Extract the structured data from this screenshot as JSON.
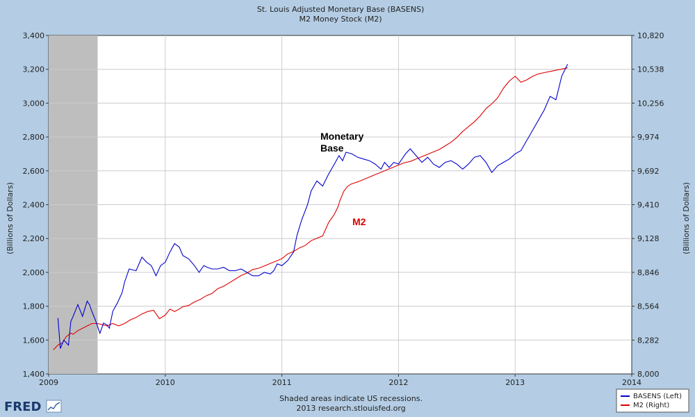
{
  "chart_data": {
    "type": "line",
    "title": "St. Louis Adjusted Monetary Base (BASENS)",
    "subtitle": "M2 Money Stock (M2)",
    "ylabel_left": "(Billions of Dollars)",
    "ylabel_right": "(Billions of Dollars)",
    "x_ticks": [
      "2009",
      "2010",
      "2011",
      "2012",
      "2013",
      "2014"
    ],
    "xlim": [
      2009,
      2014
    ],
    "ylim_left": [
      1400,
      3400
    ],
    "y_ticks_left": [
      "1,400",
      "1,600",
      "1,800",
      "2,000",
      "2,200",
      "2,400",
      "2,600",
      "2,800",
      "3,000",
      "3,200",
      "3,400"
    ],
    "ylim_right": [
      8000,
      10820
    ],
    "y_ticks_right": [
      "8,000",
      "8,282",
      "8,564",
      "8,846",
      "9,128",
      "9,410",
      "9,692",
      "9,974",
      "10,256",
      "10,538",
      "10,820"
    ],
    "recession": {
      "start": 2009.0,
      "end": 2009.42
    },
    "series": [
      {
        "name": "BASENS (Left)",
        "color": "#0000cc",
        "axis": "left",
        "x": [
          2009.08,
          2009.1,
          2009.13,
          2009.17,
          2009.19,
          2009.21,
          2009.25,
          2009.29,
          2009.33,
          2009.35,
          2009.37,
          2009.4,
          2009.44,
          2009.47,
          2009.5,
          2009.52,
          2009.55,
          2009.59,
          2009.63,
          2009.65,
          2009.69,
          2009.75,
          2009.8,
          2009.84,
          2009.88,
          2009.92,
          2009.96,
          2010.0,
          2010.04,
          2010.08,
          2010.12,
          2010.15,
          2010.2,
          2010.25,
          2010.29,
          2010.33,
          2010.36,
          2010.4,
          2010.45,
          2010.5,
          2010.55,
          2010.6,
          2010.65,
          2010.7,
          2010.75,
          2010.8,
          2010.85,
          2010.9,
          2010.93,
          2010.96,
          2011.0,
          2011.05,
          2011.1,
          2011.13,
          2011.17,
          2011.22,
          2011.25,
          2011.3,
          2011.35,
          2011.4,
          2011.45,
          2011.49,
          2011.52,
          2011.55,
          2011.6,
          2011.65,
          2011.7,
          2011.75,
          2011.8,
          2011.85,
          2011.88,
          2011.92,
          2011.96,
          2012.0,
          2012.03,
          2012.06,
          2012.1,
          2012.15,
          2012.2,
          2012.25,
          2012.3,
          2012.35,
          2012.4,
          2012.45,
          2012.5,
          2012.55,
          2012.6,
          2012.65,
          2012.7,
          2012.75,
          2012.8,
          2012.85,
          2012.9,
          2012.95,
          2013.0,
          2013.05,
          2013.1,
          2013.15,
          2013.2,
          2013.25,
          2013.3,
          2013.35,
          2013.4,
          2013.45
        ],
        "values": [
          1730,
          1550,
          1600,
          1570,
          1710,
          1740,
          1810,
          1740,
          1830,
          1810,
          1770,
          1720,
          1640,
          1700,
          1690,
          1670,
          1770,
          1820,
          1880,
          1940,
          2020,
          2010,
          2090,
          2060,
          2040,
          1980,
          2040,
          2060,
          2120,
          2170,
          2150,
          2100,
          2080,
          2040,
          2000,
          2040,
          2030,
          2020,
          2020,
          2030,
          2010,
          2010,
          2020,
          2000,
          1980,
          1980,
          2000,
          1990,
          2010,
          2050,
          2040,
          2070,
          2120,
          2220,
          2310,
          2400,
          2480,
          2540,
          2510,
          2580,
          2640,
          2690,
          2660,
          2710,
          2700,
          2680,
          2670,
          2660,
          2640,
          2610,
          2650,
          2620,
          2650,
          2640,
          2670,
          2700,
          2730,
          2690,
          2650,
          2680,
          2640,
          2620,
          2650,
          2660,
          2640,
          2610,
          2640,
          2680,
          2690,
          2650,
          2590,
          2630,
          2650,
          2670,
          2700,
          2720,
          2780,
          2840,
          2900,
          2960,
          3040,
          3020,
          3160,
          3230
        ]
      },
      {
        "name": "M2 (Right)",
        "color": "#dd0000",
        "axis": "right",
        "x": [
          2009.04,
          2009.08,
          2009.12,
          2009.15,
          2009.19,
          2009.21,
          2009.25,
          2009.29,
          2009.33,
          2009.37,
          2009.42,
          2009.46,
          2009.5,
          2009.55,
          2009.6,
          2009.65,
          2009.7,
          2009.75,
          2009.8,
          2009.85,
          2009.9,
          2009.95,
          2010.0,
          2010.04,
          2010.08,
          2010.12,
          2010.15,
          2010.2,
          2010.25,
          2010.3,
          2010.35,
          2010.4,
          2010.45,
          2010.5,
          2010.55,
          2010.6,
          2010.65,
          2010.7,
          2010.75,
          2010.8,
          2010.85,
          2010.9,
          2010.95,
          2011.0,
          2011.05,
          2011.1,
          2011.15,
          2011.2,
          2011.25,
          2011.3,
          2011.35,
          2011.4,
          2011.45,
          2011.48,
          2011.5,
          2011.53,
          2011.56,
          2011.59,
          2011.62,
          2011.65,
          2011.7,
          2011.75,
          2011.8,
          2011.85,
          2011.9,
          2011.95,
          2012.0,
          2012.05,
          2012.1,
          2012.15,
          2012.2,
          2012.25,
          2012.3,
          2012.35,
          2012.4,
          2012.45,
          2012.5,
          2012.55,
          2012.6,
          2012.65,
          2012.7,
          2012.75,
          2012.8,
          2012.85,
          2012.9,
          2012.95,
          2013.0,
          2013.05,
          2013.1,
          2013.15,
          2013.2,
          2013.25,
          2013.3,
          2013.35,
          2013.4,
          2013.45
        ],
        "values": [
          8200,
          8240,
          8260,
          8310,
          8340,
          8330,
          8360,
          8380,
          8400,
          8420,
          8420,
          8410,
          8400,
          8420,
          8400,
          8420,
          8450,
          8470,
          8500,
          8520,
          8530,
          8460,
          8490,
          8540,
          8520,
          8540,
          8560,
          8570,
          8600,
          8620,
          8650,
          8670,
          8710,
          8730,
          8760,
          8790,
          8820,
          8840,
          8870,
          8880,
          8900,
          8920,
          8940,
          8960,
          9000,
          9020,
          9050,
          9070,
          9110,
          9130,
          9150,
          9260,
          9330,
          9390,
          9450,
          9520,
          9560,
          9580,
          9590,
          9600,
          9620,
          9640,
          9660,
          9680,
          9700,
          9720,
          9740,
          9760,
          9770,
          9790,
          9810,
          9830,
          9850,
          9870,
          9900,
          9930,
          9970,
          10020,
          10060,
          10100,
          10150,
          10210,
          10250,
          10300,
          10380,
          10440,
          10480,
          10430,
          10450,
          10480,
          10500,
          10510,
          10520,
          10530,
          10540,
          10550
        ]
      }
    ],
    "annotations": [
      {
        "text_line1": "Monetary",
        "text_line2": "Base",
        "color": "#000000"
      },
      {
        "text": "M2",
        "color": "#dd0000"
      }
    ],
    "legend": [
      "BASENS (Left)",
      "M2 (Right)"
    ],
    "footnote": "Shaded areas indicate US recessions.",
    "source": "2013 research.stlouisfed.org"
  },
  "logo": {
    "text": "FRED"
  }
}
